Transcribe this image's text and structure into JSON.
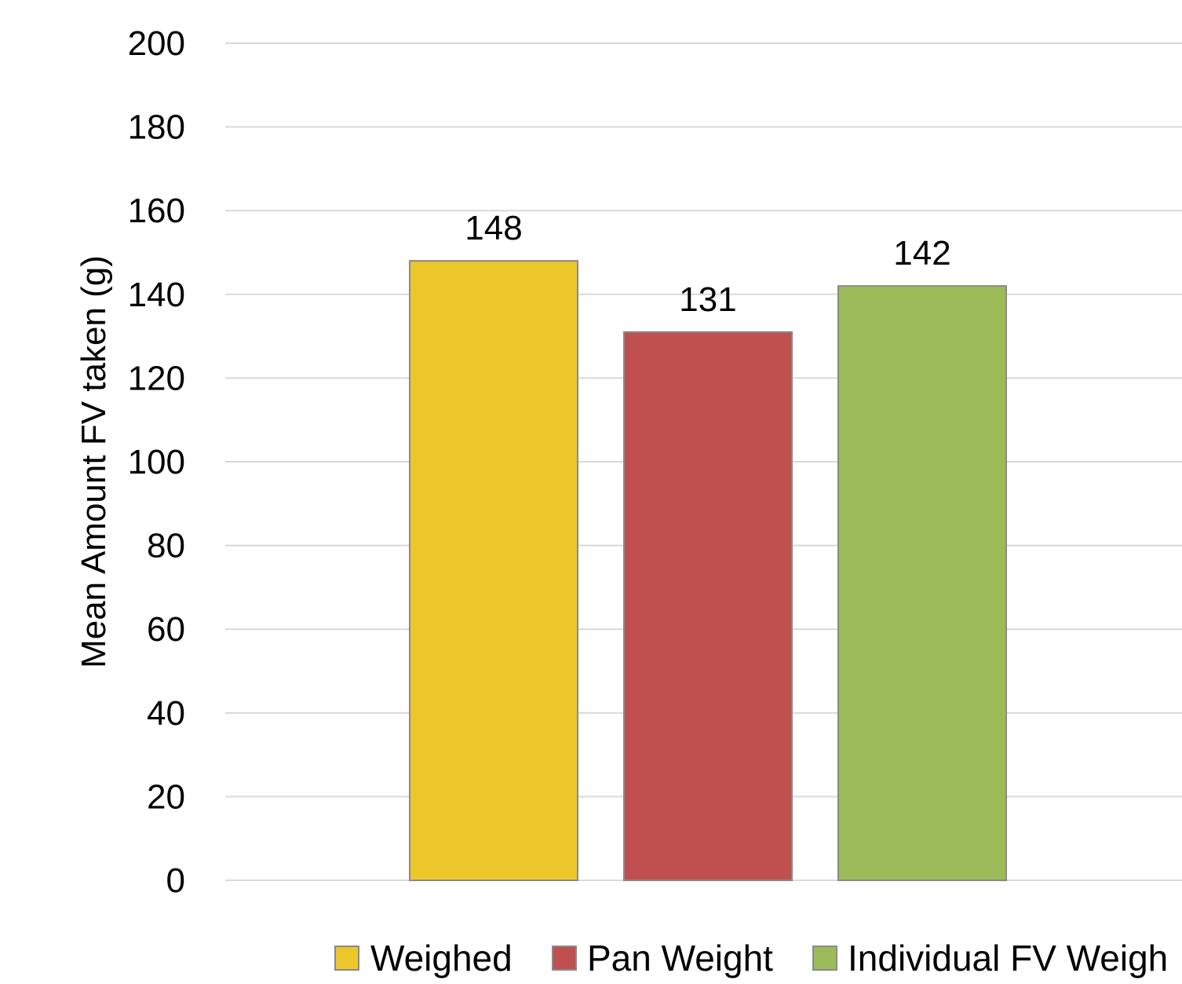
{
  "chart_data": {
    "type": "bar",
    "title": "",
    "xlabel": "",
    "ylabel": "Mean Amount FV taken (g)",
    "ylim": [
      0,
      200
    ],
    "yticks": [
      0,
      20,
      40,
      60,
      80,
      100,
      120,
      140,
      160,
      180,
      200
    ],
    "grid": true,
    "legend_position": "bottom",
    "series": [
      {
        "name": "Weighed",
        "values": [
          148
        ],
        "color": "#ECC72C"
      },
      {
        "name": "Pan Weight",
        "values": [
          131
        ],
        "color": "#C0504F"
      },
      {
        "name": "Individual FV Weigh",
        "values": [
          142
        ],
        "color": "#9BBB59"
      }
    ],
    "data_labels": [
      "148",
      "131",
      "142"
    ]
  }
}
